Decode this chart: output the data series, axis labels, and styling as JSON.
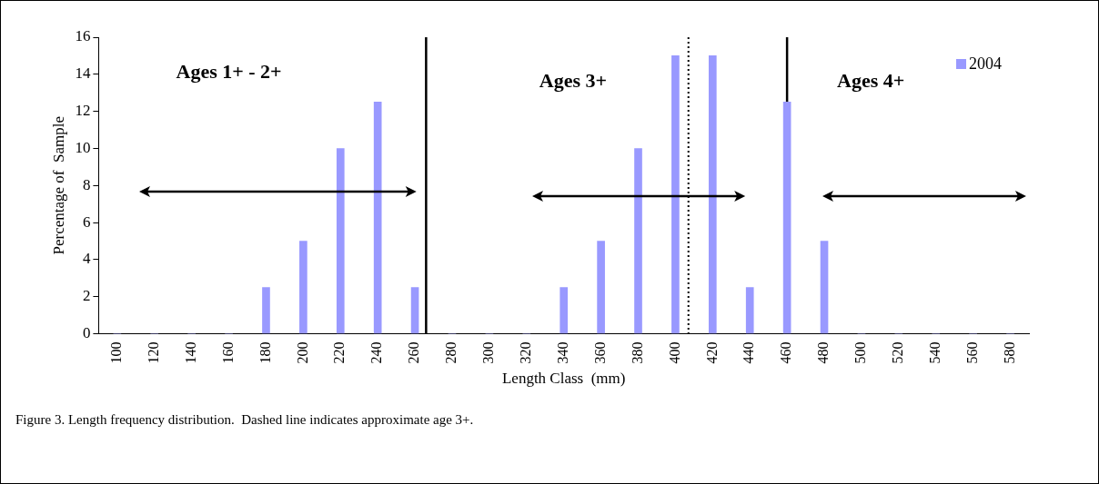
{
  "chart_data": {
    "type": "bar",
    "xlabel": "Length Class  (mm)",
    "ylabel": "Percentage of  Sample",
    "x": [
      100,
      120,
      140,
      160,
      180,
      200,
      220,
      240,
      260,
      280,
      300,
      320,
      340,
      360,
      380,
      400,
      420,
      440,
      460,
      480,
      500,
      520,
      540,
      560,
      580
    ],
    "series": [
      {
        "name": "2004",
        "color": "#9999ff",
        "values": [
          0,
          0,
          0,
          0,
          2.5,
          5,
          10,
          12.5,
          2.5,
          0,
          0,
          0,
          2.5,
          5,
          10,
          15,
          15,
          2.5,
          12.5,
          5,
          0,
          0,
          0,
          0,
          0
        ]
      }
    ],
    "xlim": [
      90,
      590
    ],
    "xticks": [
      100,
      120,
      140,
      160,
      180,
      200,
      220,
      240,
      260,
      280,
      300,
      320,
      340,
      360,
      380,
      400,
      420,
      440,
      460,
      480,
      500,
      520,
      540,
      560,
      580
    ],
    "ylim": [
      0,
      16
    ],
    "yticks": [
      0,
      2,
      4,
      6,
      8,
      10,
      12,
      14,
      16
    ],
    "grid": false,
    "legend": "top right",
    "ref_lines": [
      {
        "axis": "x",
        "value": 266,
        "line_style": "solid",
        "color": "#000000"
      },
      {
        "axis": "x",
        "value": 460,
        "line_style": "solid",
        "color": "#000000"
      },
      {
        "axis": "x",
        "value": 407,
        "line_style": "dotted",
        "color": "#000000"
      }
    ],
    "annotations": [
      "Ages 1+ - 2+",
      "Ages 3+",
      "Ages 4+",
      "Figure 3. Length frequency distribution.  Dashed line indicates approximate age 3+."
    ]
  }
}
